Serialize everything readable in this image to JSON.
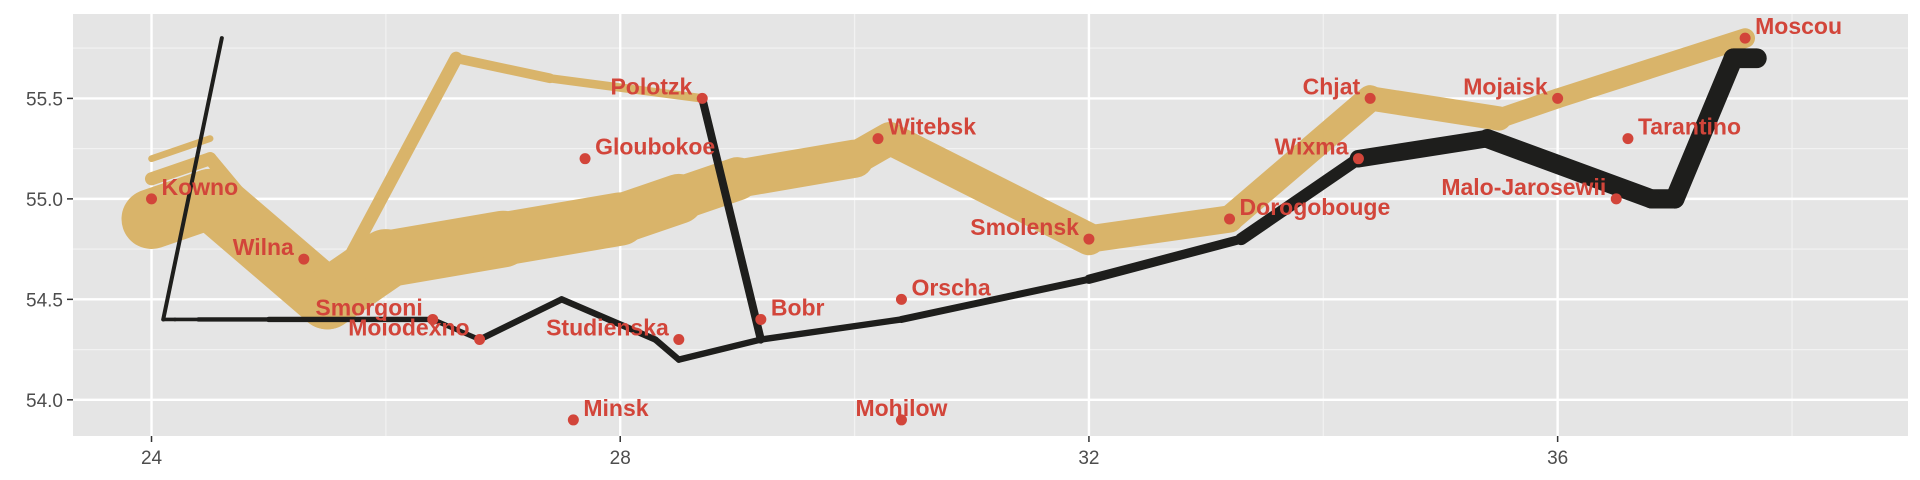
{
  "chart_data": {
    "type": "path",
    "title": "",
    "xlabel": "",
    "ylabel": "",
    "xlim": [
      23.33,
      38.99
    ],
    "ylim": [
      53.82,
      55.92
    ],
    "x_ticks": [
      24,
      28,
      32,
      36
    ],
    "x_tick_labels": [
      "24",
      "28",
      "32",
      "36"
    ],
    "y_ticks": [
      54.0,
      54.5,
      55.0,
      55.5
    ],
    "y_tick_labels": [
      "54.0",
      "54.5",
      "55.0",
      "55.5"
    ],
    "grid": true,
    "legend": "none",
    "colors": {
      "panel_background": "#e5e5e5",
      "grid_major": "#ffffff",
      "grid_minor": "#f2f2f2",
      "advance": "#d9b46a",
      "retreat": "#1e1e1c",
      "city": "#d2453a"
    },
    "series": [
      {
        "direction": "A",
        "group": 1,
        "color": "#d9b46a",
        "points": [
          [
            24.0,
            54.9,
            340000
          ],
          [
            24.5,
            55.0,
            340000
          ],
          [
            25.5,
            54.5,
            340000
          ],
          [
            26.0,
            54.7,
            320000
          ],
          [
            27.0,
            54.8,
            300000
          ],
          [
            28.0,
            54.9,
            280000
          ],
          [
            28.5,
            55.0,
            240000
          ],
          [
            29.0,
            55.1,
            210000
          ],
          [
            30.0,
            55.2,
            180000
          ],
          [
            30.3,
            55.3,
            175000
          ],
          [
            32.0,
            54.8,
            145000
          ],
          [
            33.2,
            54.9,
            140000
          ],
          [
            34.4,
            55.5,
            127100
          ],
          [
            35.5,
            55.4,
            100000
          ],
          [
            36.0,
            55.5,
            100000
          ],
          [
            37.6,
            55.8,
            100000
          ]
        ]
      },
      {
        "direction": "A",
        "group": 2,
        "color": "#d9b46a",
        "points": [
          [
            24.0,
            55.1,
            60000
          ],
          [
            24.5,
            55.2,
            60000
          ],
          [
            25.5,
            54.5,
            60000
          ],
          [
            26.6,
            55.7,
            40000
          ],
          [
            27.4,
            55.6,
            33000
          ],
          [
            28.7,
            55.5,
            33000
          ]
        ]
      },
      {
        "direction": "A",
        "group": 3,
        "color": "#d9b46a",
        "points": [
          [
            24.0,
            55.2,
            22000
          ],
          [
            24.5,
            55.3,
            22000
          ]
        ]
      },
      {
        "direction": "R",
        "group": 1,
        "color": "#1e1e1c",
        "points": [
          [
            37.7,
            55.7,
            100000
          ],
          [
            37.5,
            55.7,
            98000
          ],
          [
            37.0,
            55.0,
            97000
          ],
          [
            36.8,
            55.0,
            96000
          ],
          [
            35.4,
            55.3,
            87000
          ],
          [
            34.3,
            55.2,
            55000
          ],
          [
            33.3,
            54.8,
            37000
          ],
          [
            32.0,
            54.6,
            24000
          ],
          [
            30.4,
            54.4,
            20000
          ],
          [
            29.2,
            54.3,
            20000
          ],
          [
            28.5,
            54.2,
            20000
          ],
          [
            28.3,
            54.3,
            20000
          ],
          [
            27.5,
            54.5,
            20000
          ],
          [
            26.8,
            54.3,
            12000
          ],
          [
            26.4,
            54.4,
            14000
          ],
          [
            25.0,
            54.4,
            8000
          ],
          [
            24.4,
            54.4,
            4000
          ],
          [
            24.2,
            54.4,
            4000
          ],
          [
            24.1,
            54.4,
            4000
          ]
        ]
      },
      {
        "direction": "R",
        "group": 2,
        "color": "#1e1e1c",
        "points": [
          [
            28.7,
            55.5,
            30000
          ],
          [
            29.2,
            54.3,
            30000
          ]
        ]
      },
      {
        "direction": "R",
        "group": 3,
        "color": "#1e1e1c",
        "points": [
          [
            24.1,
            54.4,
            6000
          ],
          [
            24.6,
            55.8,
            6000
          ]
        ]
      }
    ],
    "cities": [
      {
        "name": "Kowno",
        "lon": 24.0,
        "lat": 55.0,
        "anchor": "start"
      },
      {
        "name": "Wilna",
        "lon": 25.3,
        "lat": 54.7,
        "anchor": "end"
      },
      {
        "name": "Smorgoni",
        "lon": 26.4,
        "lat": 54.4,
        "anchor": "end"
      },
      {
        "name": "Moiodexno",
        "lon": 26.8,
        "lat": 54.3,
        "anchor": "end"
      },
      {
        "name": "Gloubokoe",
        "lon": 27.7,
        "lat": 55.2,
        "anchor": "start"
      },
      {
        "name": "Minsk",
        "lon": 27.6,
        "lat": 53.9,
        "anchor": "start"
      },
      {
        "name": "Studienska",
        "lon": 28.5,
        "lat": 54.3,
        "anchor": "end"
      },
      {
        "name": "Polotzk",
        "lon": 28.7,
        "lat": 55.5,
        "anchor": "end"
      },
      {
        "name": "Bobr",
        "lon": 29.2,
        "lat": 54.4,
        "anchor": "start"
      },
      {
        "name": "Witebsk",
        "lon": 30.2,
        "lat": 55.3,
        "anchor": "start"
      },
      {
        "name": "Orscha",
        "lon": 30.4,
        "lat": 54.5,
        "anchor": "start"
      },
      {
        "name": "Mohilow",
        "lon": 30.4,
        "lat": 53.9,
        "anchor": "middle"
      },
      {
        "name": "Smolensk",
        "lon": 32.0,
        "lat": 54.8,
        "anchor": "end"
      },
      {
        "name": "Dorogobouge",
        "lon": 33.2,
        "lat": 54.9,
        "anchor": "start"
      },
      {
        "name": "Wixma",
        "lon": 34.3,
        "lat": 55.2,
        "anchor": "end"
      },
      {
        "name": "Chjat",
        "lon": 34.4,
        "lat": 55.5,
        "anchor": "end"
      },
      {
        "name": "Mojaisk",
        "lon": 36.0,
        "lat": 55.5,
        "anchor": "end"
      },
      {
        "name": "Tarantino",
        "lon": 36.6,
        "lat": 55.3,
        "anchor": "start"
      },
      {
        "name": "Malo-Jarosewii",
        "lon": 36.5,
        "lat": 55.0,
        "anchor": "end"
      },
      {
        "name": "Moscou",
        "lon": 37.6,
        "lat": 55.8,
        "anchor": "start"
      }
    ]
  }
}
